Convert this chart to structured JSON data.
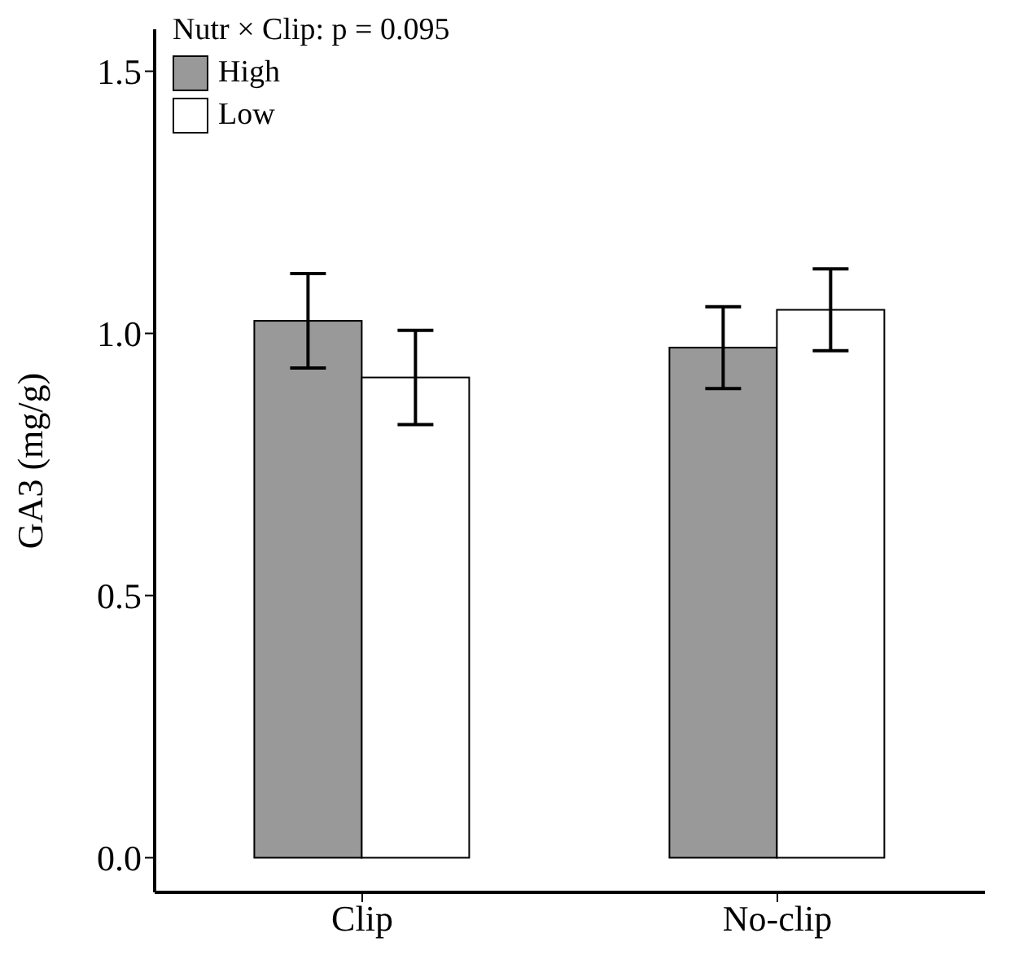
{
  "chart_data": {
    "type": "bar",
    "ylabel": "GA3 (mg/g)",
    "categories": [
      "Clip",
      "No-clip"
    ],
    "series": [
      {
        "name": "High",
        "color": "#999999",
        "values": [
          1.024,
          0.973
        ],
        "errors": [
          0.09,
          0.078
        ]
      },
      {
        "name": "Low",
        "color": "#ffffff",
        "values": [
          0.916,
          1.045
        ],
        "errors": [
          0.09,
          0.078
        ]
      }
    ],
    "ylim": [
      -0.066,
      1.58
    ],
    "yticks": [
      {
        "value": 0,
        "label": "0.0"
      },
      {
        "value": 0.5,
        "label": "0.5"
      },
      {
        "value": 1,
        "label": "1.0"
      },
      {
        "value": 1.5,
        "label": "1.5"
      }
    ],
    "annotations": [
      "Nutr × Clip: p = 0.095"
    ],
    "legend": "top left",
    "grid": false
  }
}
